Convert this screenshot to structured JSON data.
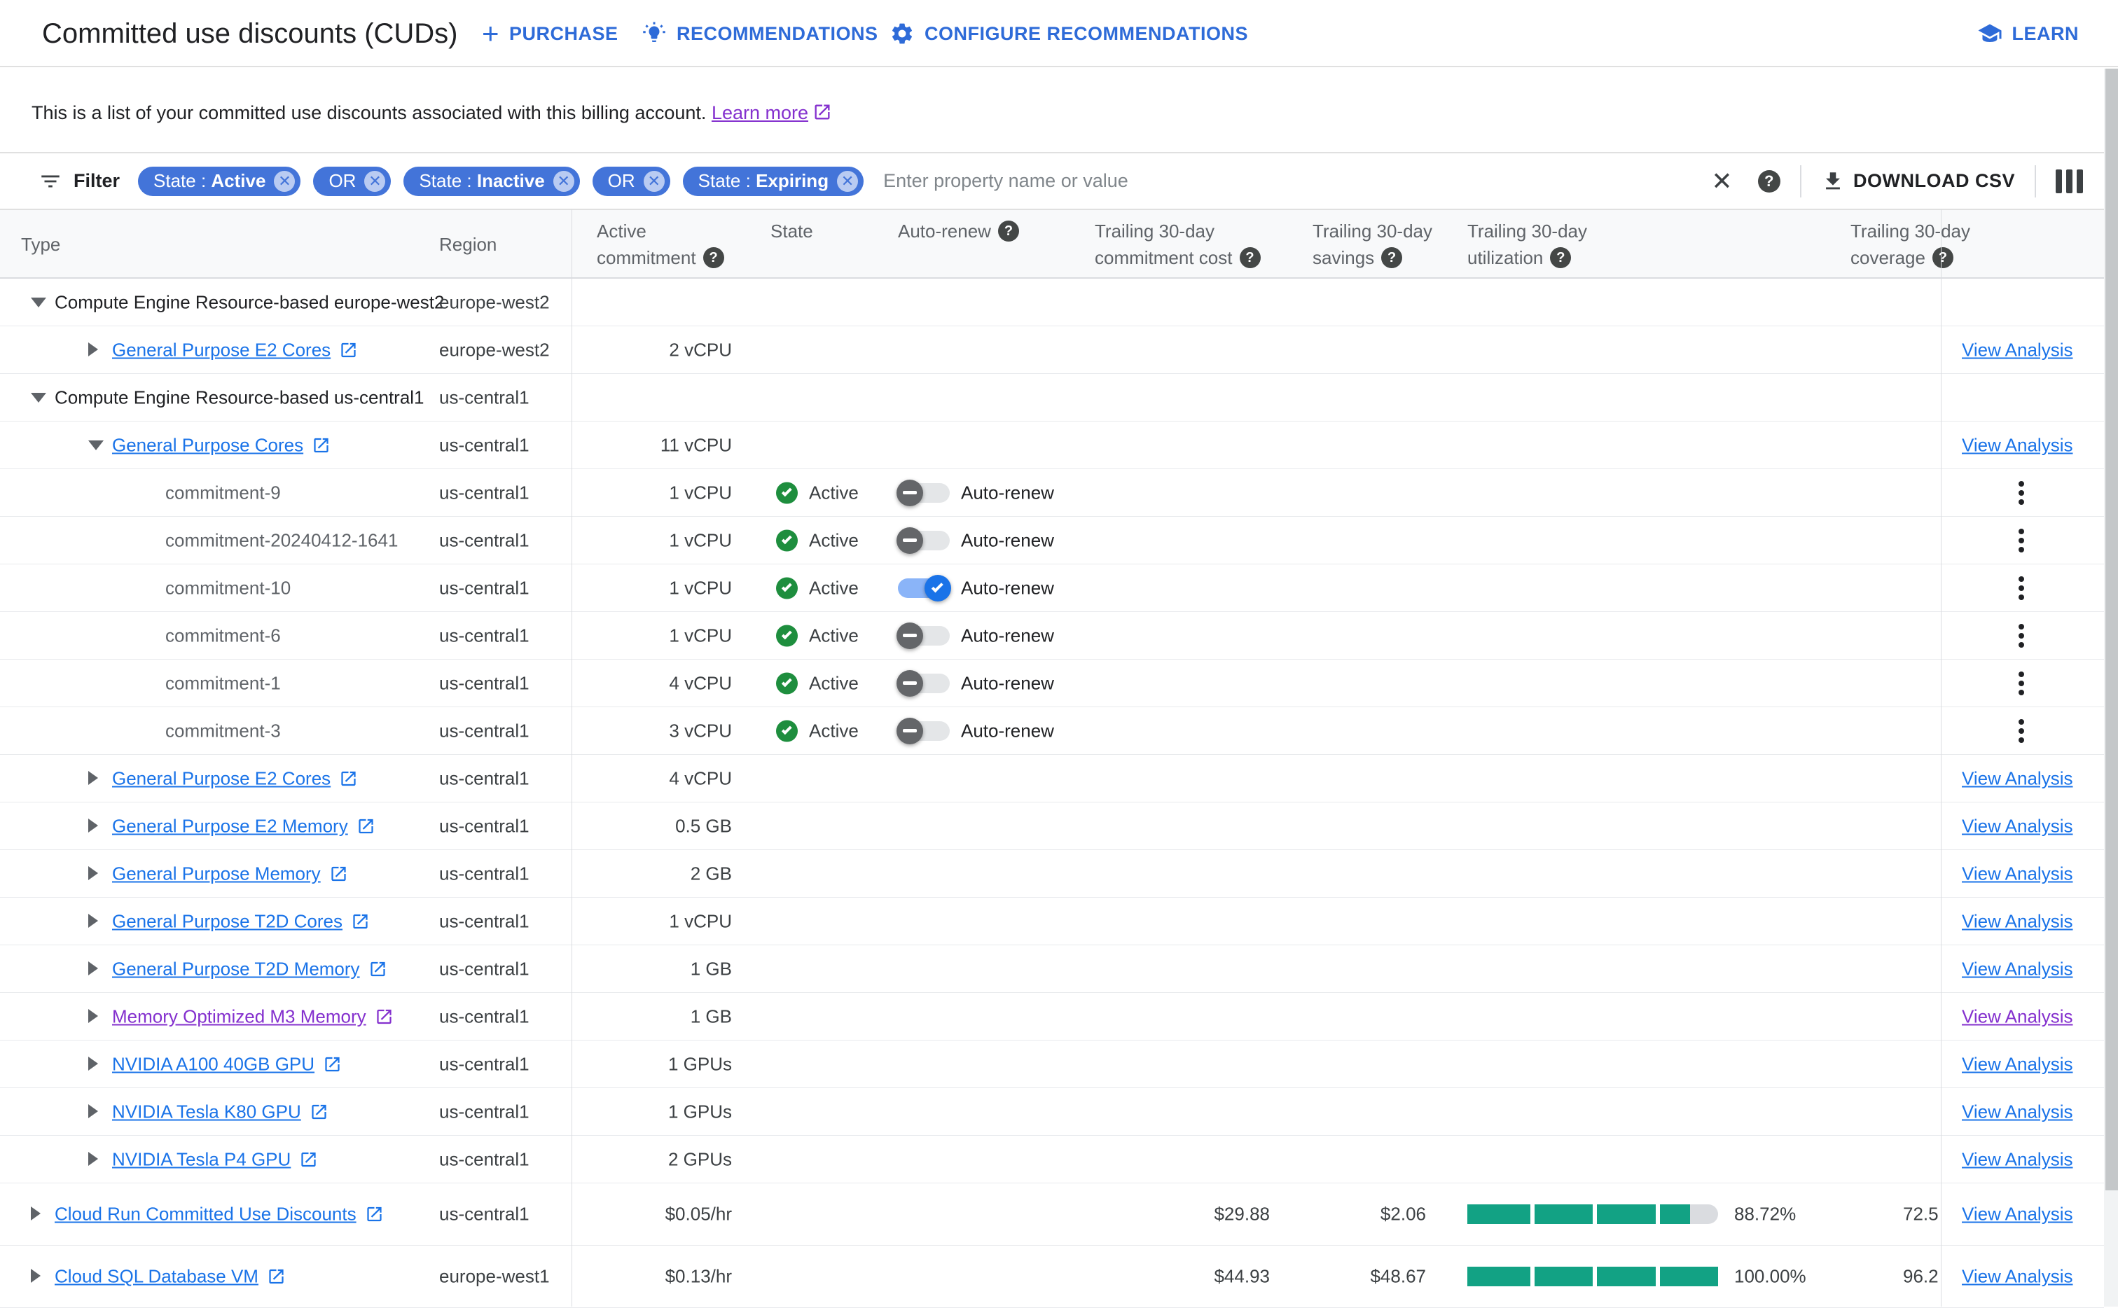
{
  "colors": {
    "accent_blue": "#1a73e8",
    "chip_blue": "#4374d9",
    "visited_purple": "#8430ce",
    "active_green": "#1e8e3e",
    "utilization_teal": "#12a284"
  },
  "header": {
    "title": "Committed use discounts (CUDs)",
    "purchase_label": "PURCHASE",
    "recommendations_label": "RECOMMENDATIONS",
    "configure_label": "CONFIGURE RECOMMENDATIONS",
    "learn_label": "LEARN"
  },
  "description": {
    "text": "This is a list of your committed use discounts associated with this billing account.",
    "link_label": "Learn more"
  },
  "filter": {
    "label": "Filter",
    "chips": [
      {
        "prefix": "State :",
        "value": "Active"
      },
      {
        "prefix": "OR"
      },
      {
        "prefix": "State :",
        "value": "Inactive"
      },
      {
        "prefix": "OR"
      },
      {
        "prefix": "State :",
        "value": "Expiring"
      }
    ],
    "placeholder": "Enter property name or value",
    "download_label": "DOWNLOAD CSV"
  },
  "table": {
    "headers": {
      "type": "Type",
      "region": "Region",
      "active1": "Active",
      "active2": "commitment",
      "state": "State",
      "autorenew": "Auto-renew",
      "cost1": "Trailing 30-day",
      "cost2": "commitment cost",
      "savings1": "Trailing 30-day",
      "savings2": "savings",
      "util1": "Trailing 30-day",
      "util2": "utilization",
      "cov1": "Trailing 30-day",
      "cov2": "coverage"
    },
    "state_label": "Active",
    "autorenew_label": "Auto-renew",
    "view_analysis_label": "View Analysis"
  },
  "rows": [
    {
      "kind": "group",
      "indent": 0,
      "expanded": true,
      "label": "Compute Engine Resource-based europe-west2",
      "region": "europe-west2"
    },
    {
      "kind": "link",
      "indent": 1,
      "expanded": false,
      "label": "General Purpose E2 Cores",
      "region": "europe-west2",
      "commitment": "2 vCPU",
      "action": "view"
    },
    {
      "kind": "group",
      "indent": 0,
      "expanded": true,
      "label": "Compute Engine Resource-based us-central1",
      "region": "us-central1"
    },
    {
      "kind": "link",
      "indent": 1,
      "expanded": true,
      "label": "General Purpose Cores",
      "region": "us-central1",
      "commitment": "11 vCPU",
      "action": "view"
    },
    {
      "kind": "commitment",
      "indent": 2,
      "label": "commitment-9",
      "region": "us-central1",
      "commitment": "1 vCPU",
      "state": "Active",
      "autorenew_on": false,
      "action": "menu"
    },
    {
      "kind": "commitment",
      "indent": 2,
      "label": "commitment-20240412-1641",
      "region": "us-central1",
      "commitment": "1 vCPU",
      "state": "Active",
      "autorenew_on": false,
      "action": "menu"
    },
    {
      "kind": "commitment",
      "indent": 2,
      "label": "commitment-10",
      "region": "us-central1",
      "commitment": "1 vCPU",
      "state": "Active",
      "autorenew_on": true,
      "action": "menu"
    },
    {
      "kind": "commitment",
      "indent": 2,
      "label": "commitment-6",
      "region": "us-central1",
      "commitment": "1 vCPU",
      "state": "Active",
      "autorenew_on": false,
      "action": "menu"
    },
    {
      "kind": "commitment",
      "indent": 2,
      "label": "commitment-1",
      "region": "us-central1",
      "commitment": "4 vCPU",
      "state": "Active",
      "autorenew_on": false,
      "action": "menu"
    },
    {
      "kind": "commitment",
      "indent": 2,
      "label": "commitment-3",
      "region": "us-central1",
      "commitment": "3 vCPU",
      "state": "Active",
      "autorenew_on": false,
      "action": "menu"
    },
    {
      "kind": "link",
      "indent": 1,
      "expanded": false,
      "label": "General Purpose E2 Cores",
      "region": "us-central1",
      "commitment": "4 vCPU",
      "action": "view"
    },
    {
      "kind": "link",
      "indent": 1,
      "expanded": false,
      "label": "General Purpose E2 Memory",
      "region": "us-central1",
      "commitment": "0.5 GB",
      "action": "view"
    },
    {
      "kind": "link",
      "indent": 1,
      "expanded": false,
      "label": "General Purpose Memory",
      "region": "us-central1",
      "commitment": "2 GB",
      "action": "view"
    },
    {
      "kind": "link",
      "indent": 1,
      "expanded": false,
      "label": "General Purpose T2D Cores",
      "region": "us-central1",
      "commitment": "1 vCPU",
      "action": "view"
    },
    {
      "kind": "link",
      "indent": 1,
      "expanded": false,
      "label": "General Purpose T2D Memory",
      "region": "us-central1",
      "commitment": "1 GB",
      "action": "view"
    },
    {
      "kind": "link",
      "indent": 1,
      "expanded": false,
      "label": "Memory Optimized M3 Memory",
      "region": "us-central1",
      "commitment": "1 GB",
      "action": "view",
      "visited": true
    },
    {
      "kind": "link",
      "indent": 1,
      "expanded": false,
      "label": "NVIDIA A100 40GB GPU",
      "region": "us-central1",
      "commitment": "1 GPUs",
      "action": "view"
    },
    {
      "kind": "link",
      "indent": 1,
      "expanded": false,
      "label": "NVIDIA Tesla K80 GPU",
      "region": "us-central1",
      "commitment": "1 GPUs",
      "action": "view"
    },
    {
      "kind": "link",
      "indent": 1,
      "expanded": false,
      "label": "NVIDIA Tesla P4 GPU",
      "region": "us-central1",
      "commitment": "2 GPUs",
      "action": "view"
    },
    {
      "kind": "link",
      "indent": 0,
      "expanded": false,
      "label": "Cloud Run Committed Use Discounts",
      "region": "us-central1",
      "commitment": "$0.05/hr",
      "cost": "$29.88",
      "savings": "$2.06",
      "util_pct": 88.72,
      "util_label": "88.72%",
      "coverage": "72.5",
      "action": "view",
      "tall": true
    },
    {
      "kind": "link",
      "indent": 0,
      "expanded": false,
      "label": "Cloud SQL Database VM",
      "region": "europe-west1",
      "commitment": "$0.13/hr",
      "cost": "$44.93",
      "savings": "$48.67",
      "util_pct": 100,
      "util_label": "100.00%",
      "coverage": "96.2",
      "action": "view",
      "tall": true
    }
  ]
}
